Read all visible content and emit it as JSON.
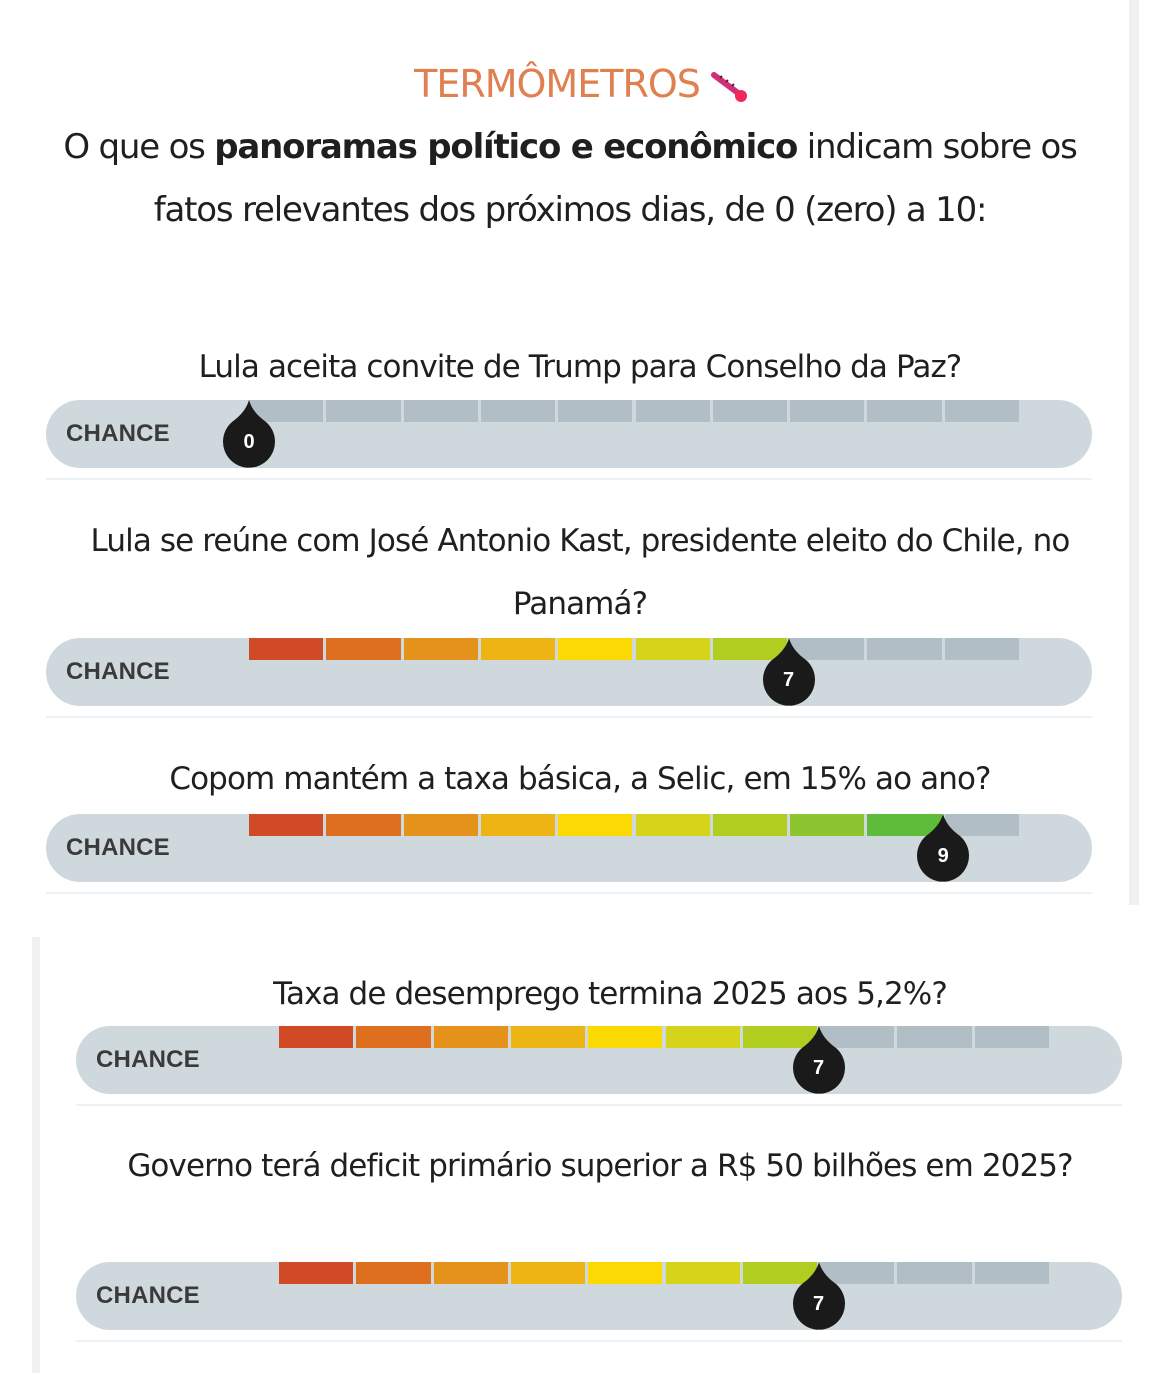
{
  "header": {
    "title": "TERMÔMETROS",
    "title_icon": "thermometer-icon",
    "intro_pre": "O que os ",
    "intro_bold": "panoramas político e econômico",
    "intro_post": " indicam sobre os fatos relevantes dos próximos dias, de 0 (zero) a 10:"
  },
  "scale": {
    "min": 0,
    "max": 10,
    "segment_colors": [
      "#cf4a25",
      "#dd6f1f",
      "#e5921a",
      "#eeb414",
      "#fcd903",
      "#d6d41a",
      "#b0cd20",
      "#8dc530",
      "#5fbc3b",
      "#3fae45"
    ],
    "empty_color": "#b1bec6",
    "track_color": "#cfd8dc",
    "pointer_color": "#1a1a1a"
  },
  "thermometers": [
    {
      "question": "Lula aceita convite de Trump para Conselho da Paz?",
      "label": "CHANCE",
      "value": 0,
      "value_text": "0"
    },
    {
      "question": "Lula se reúne com José Antonio Kast, presidente eleito do Chile, no Panamá?",
      "label": "CHANCE",
      "value": 7,
      "value_text": "7"
    },
    {
      "question": "Copom mantém a taxa básica, a Selic, em 15% ao ano?",
      "label": "CHANCE",
      "value": 9,
      "value_text": "9"
    },
    {
      "question": "Taxa de desemprego termina 2025 aos 5,2%?",
      "label": "CHANCE",
      "value": 7,
      "value_text": "7"
    },
    {
      "question": "Governo terá deficit primário superior a R$ 50 bilhões em 2025?",
      "label": "CHANCE",
      "value": 7,
      "value_text": "7"
    }
  ]
}
